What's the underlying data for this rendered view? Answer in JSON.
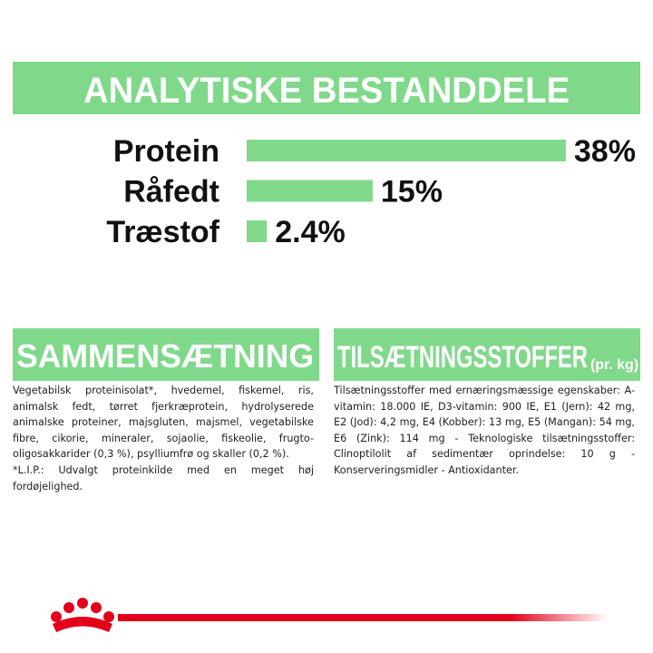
{
  "chart_data": {
    "type": "bar",
    "orientation": "horizontal",
    "title": "ANALYTISKE BESTANDDELE",
    "categories": [
      "Protein",
      "Råfedt",
      "Træstof"
    ],
    "values": [
      38,
      15,
      2.4
    ],
    "value_labels": [
      "38%",
      "15%",
      "2.4%"
    ],
    "color": "#80d98b"
  },
  "composition": {
    "title": "SAMMENSÆTNING",
    "text": "Vegetabilsk proteinisolat*, hvedemel, fiskemel, ris, animalsk fedt, tørret fjerkræprotein, hydrolyserede animalske proteiner, majsgluten, majsmel, vegetabilske fibre, cikorie, mineraler, sojaolie, fiskeolie, frugto-oligosakkarider (0,3 %), psylliumfrø og skaller (0,2 %).",
    "note": "*L.I.P.: Udvalgt proteinkilde med en meget høj fordøjelighed."
  },
  "additives": {
    "title": "TILSÆTNINGSSTOFFER",
    "unit": "(pr. kg)",
    "text": "Tilsætningsstoffer med ernæringsmæssige egenskaber: A-vitamin: 18.000 IE, D3-vitamin: 900 IE, E1 (Jern): 42 mg, E2 (Jod): 4,2 mg, E4 (Kobber): 13 mg, E5 (Mangan): 54 mg, E6 (Zink): 114 mg - Teknologiske tilsætningsstoffer: Clinoptilolit af sedimentær oprindelse: 10 g - Konserveringsmidler - Antioxidanter."
  }
}
